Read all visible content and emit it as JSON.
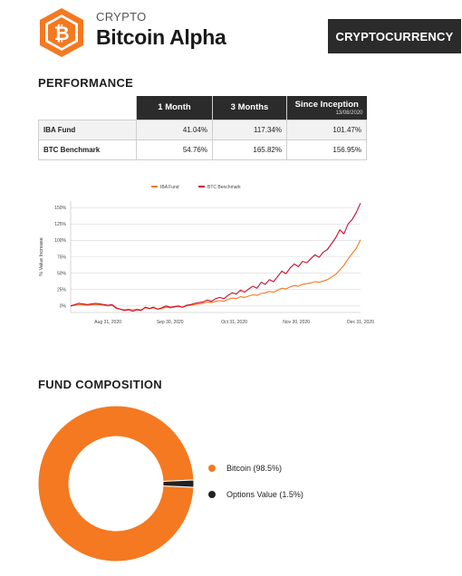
{
  "header": {
    "category": "CRYPTO",
    "title": "Bitcoin Alpha",
    "badge": "CRYPTOCURRENCY",
    "logo_icon": "bitcoin-hexagon-icon",
    "brand_color": "#f47920"
  },
  "performance": {
    "title": "PERFORMANCE",
    "columns": [
      {
        "label": "1 Month",
        "sub": ""
      },
      {
        "label": "3 Months",
        "sub": ""
      },
      {
        "label": "Since Inception",
        "sub": "13/08/2020"
      }
    ],
    "rows": [
      {
        "name": "IBA Fund",
        "values": [
          "41.04%",
          "117.34%",
          "101.47%"
        ]
      },
      {
        "name": "BTC Benchmark",
        "values": [
          "54.76%",
          "165.82%",
          "156.95%"
        ]
      }
    ]
  },
  "chart_data": {
    "type": "line",
    "legend_position": "top",
    "ylabel": "% Value Increase",
    "xlabel": "",
    "ylim": [
      -10,
      160
    ],
    "yticks": [
      "0%",
      "25%",
      "50%",
      "75%",
      "100%",
      "125%",
      "150%"
    ],
    "ytick_values": [
      0,
      25,
      50,
      75,
      100,
      125,
      150
    ],
    "xticks": [
      "Aug 31, 2020",
      "Sep 30, 2020",
      "Oct 31, 2020",
      "Nov 30, 2020",
      "Dec 31, 2020"
    ],
    "xtick_days": [
      18,
      48,
      79,
      109,
      140
    ],
    "x_days": [
      0,
      4,
      8,
      12,
      16,
      18,
      20,
      22,
      24,
      26,
      28,
      30,
      32,
      34,
      36,
      38,
      40,
      42,
      44,
      46,
      48,
      50,
      52,
      54,
      56,
      58,
      60,
      62,
      64,
      66,
      68,
      70,
      72,
      74,
      76,
      78,
      80,
      82,
      84,
      86,
      88,
      90,
      92,
      94,
      96,
      98,
      100,
      102,
      104,
      106,
      108,
      110,
      112,
      114,
      116,
      118,
      120,
      122,
      124,
      126,
      128,
      130,
      132,
      134,
      136,
      138,
      140
    ],
    "series": [
      {
        "name": "IBA Fund",
        "color": "#f47920",
        "values": [
          0,
          2,
          1,
          2,
          1,
          0,
          1,
          -4,
          -5,
          -6,
          -5,
          -6,
          -5,
          -6,
          -3,
          -4,
          -3,
          -5,
          -4,
          -2,
          -3,
          -2,
          -1,
          -2,
          0,
          1,
          2,
          3,
          4,
          6,
          5,
          7,
          8,
          7,
          10,
          12,
          11,
          14,
          13,
          15,
          17,
          16,
          19,
          20,
          22,
          21,
          24,
          27,
          26,
          29,
          31,
          30,
          33,
          34,
          35,
          37,
          36,
          38,
          40,
          44,
          48,
          55,
          62,
          72,
          80,
          88,
          101
        ]
      },
      {
        "name": "BTC Benchmark",
        "color": "#c8102e",
        "values": [
          0,
          4,
          2,
          4,
          2,
          1,
          2,
          -3,
          -5,
          -7,
          -6,
          -8,
          -6,
          -7,
          -2,
          -4,
          -2,
          -5,
          -3,
          0,
          -2,
          -1,
          0,
          -2,
          1,
          2,
          4,
          5,
          6,
          9,
          7,
          11,
          13,
          11,
          16,
          20,
          18,
          24,
          21,
          26,
          30,
          27,
          36,
          33,
          40,
          37,
          45,
          53,
          49,
          58,
          64,
          60,
          68,
          66,
          72,
          78,
          74,
          82,
          86,
          95,
          104,
          116,
          110,
          125,
          132,
          143,
          157
        ]
      }
    ]
  },
  "composition": {
    "title": "FUND COMPOSITION",
    "items": [
      {
        "label": "Bitcoin (98.5%)",
        "value": 98.5,
        "color": "#f47920"
      },
      {
        "label": "Options Value (1.5%)",
        "value": 1.5,
        "color": "#222222"
      }
    ]
  }
}
